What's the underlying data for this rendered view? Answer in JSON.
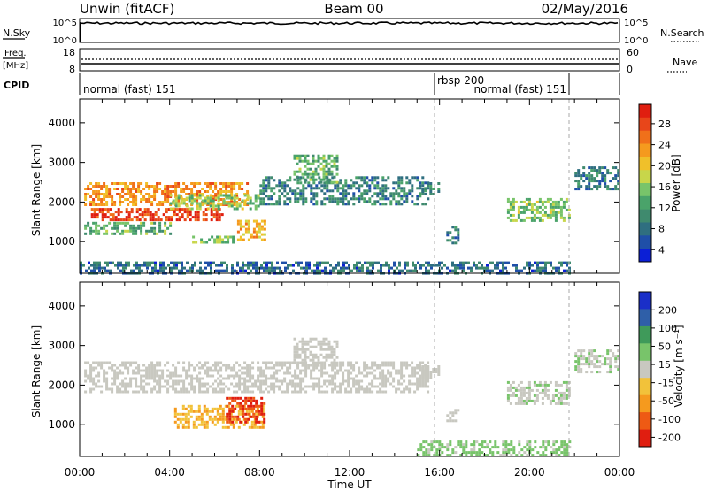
{
  "header": {
    "station": "Unwin (fitACF)",
    "beam": "Beam 00",
    "date": "02/May/2016"
  },
  "strips": {
    "nsky_label": "N.Sky",
    "nsky_ticks": [
      "10^5",
      "10^0"
    ],
    "nsearch_label": "N.Search",
    "freq_label_1": "Freq.",
    "freq_label_2": "[MHz]",
    "freq_ticks": [
      "18",
      "8"
    ],
    "nave_label": "Nave",
    "nave_ticks": [
      "60",
      "0"
    ],
    "cpid_label": "CPID",
    "cpid_segments": [
      {
        "text": "normal (fast) 151",
        "start_h": 0
      },
      {
        "text": "rbsp 200",
        "start_h": 16
      },
      {
        "text": "normal (fast) 151",
        "start_h": 22
      }
    ]
  },
  "chart_data": [
    {
      "type": "heatmap",
      "title": "Power",
      "ylabel": "Slant Range [km]",
      "xlabel": "Time UT",
      "x_ticks": [
        "00:00",
        "04:00",
        "08:00",
        "12:00",
        "16:00",
        "20:00",
        "00:00"
      ],
      "xlim_hours": [
        0,
        24
      ],
      "ylim_km": [
        200,
        4600
      ],
      "y_ticks": [
        1000,
        2000,
        3000,
        4000
      ],
      "colorbar": {
        "label": "Power [dB]",
        "ticks": [
          "28",
          "24",
          "20",
          "16",
          "12",
          "8",
          "4"
        ],
        "range": [
          0,
          30
        ],
        "colors": [
          "#0b1fd6",
          "#1f4fa8",
          "#2f6f80",
          "#3f8a6e",
          "#4aa36a",
          "#78c46a",
          "#c8d64a",
          "#f0c02a",
          "#f59a1e",
          "#f0701a",
          "#e8461a",
          "#e01e10"
        ]
      },
      "bands": [
        {
          "from_h": 0.2,
          "to_h": 7.5,
          "range_km": [
            1950,
            2500
          ],
          "level": 22
        },
        {
          "from_h": 0.5,
          "to_h": 6.5,
          "range_km": [
            1550,
            1850
          ],
          "level": 27
        },
        {
          "from_h": 0.2,
          "to_h": 4.0,
          "range_km": [
            1200,
            1500
          ],
          "level": 12
        },
        {
          "from_h": 4.0,
          "to_h": 8.0,
          "range_km": [
            1800,
            2200
          ],
          "level": 14
        },
        {
          "from_h": 8.0,
          "to_h": 15.5,
          "range_km": [
            1950,
            2650
          ],
          "level": 8
        },
        {
          "from_h": 9.5,
          "to_h": 11.5,
          "range_km": [
            2500,
            3200
          ],
          "level": 12
        },
        {
          "from_h": 7.0,
          "to_h": 8.2,
          "range_km": [
            1050,
            1550
          ],
          "level": 20
        },
        {
          "from_h": 5.0,
          "to_h": 6.8,
          "range_km": [
            950,
            1150
          ],
          "level": 14
        },
        {
          "from_h": 15.2,
          "to_h": 16.0,
          "range_km": [
            2200,
            2500
          ],
          "level": 10
        },
        {
          "from_h": 16.3,
          "to_h": 16.8,
          "range_km": [
            950,
            1400
          ],
          "level": 7
        },
        {
          "from_h": 19.0,
          "to_h": 21.8,
          "range_km": [
            1500,
            2100
          ],
          "level": 14
        },
        {
          "from_h": 22.0,
          "to_h": 24.0,
          "range_km": [
            2300,
            2900
          ],
          "level": 7
        },
        {
          "from_h": 0.0,
          "to_h": 21.8,
          "range_km": [
            200,
            500
          ],
          "level": 6
        }
      ]
    },
    {
      "type": "heatmap",
      "title": "Velocity",
      "ylabel": "Slant Range [km]",
      "xlabel": "Time UT",
      "x_ticks": [
        "00:00",
        "04:00",
        "08:00",
        "12:00",
        "16:00",
        "20:00",
        "00:00"
      ],
      "xlim_hours": [
        0,
        24
      ],
      "ylim_km": [
        200,
        4600
      ],
      "y_ticks": [
        1000,
        2000,
        3000,
        4000
      ],
      "colorbar": {
        "label": "Velocity [m s⁻¹]",
        "ticks": [
          "200",
          "100",
          "50",
          "15",
          "-15",
          "-50",
          "-100",
          "-200"
        ],
        "range": [
          -250,
          250
        ],
        "colors": [
          "#e01e10",
          "#ee5a14",
          "#f59a1e",
          "#f2c23a",
          "#c8c8c0",
          "#78c46a",
          "#3f9a5a",
          "#2f5fa8",
          "#1a2fc8"
        ]
      },
      "bands": [
        {
          "from_h": 0.2,
          "to_h": 15.5,
          "range_km": [
            1800,
            2600
          ],
          "level": 0
        },
        {
          "from_h": 9.5,
          "to_h": 11.5,
          "range_km": [
            2500,
            3200
          ],
          "level": 0
        },
        {
          "from_h": 4.2,
          "to_h": 8.2,
          "range_km": [
            900,
            1500
          ],
          "level": -80
        },
        {
          "from_h": 6.5,
          "to_h": 8.2,
          "range_km": [
            1050,
            1700
          ],
          "level": -200
        },
        {
          "from_h": 15.2,
          "to_h": 16.0,
          "range_km": [
            2200,
            2500
          ],
          "level": 0
        },
        {
          "from_h": 16.3,
          "to_h": 16.8,
          "range_km": [
            1100,
            1400
          ],
          "level": 0
        },
        {
          "from_h": 19.0,
          "to_h": 21.8,
          "range_km": [
            1500,
            2100
          ],
          "level": 20
        },
        {
          "from_h": 22.0,
          "to_h": 24.0,
          "range_km": [
            2300,
            2900
          ],
          "level": 20
        },
        {
          "from_h": 15.0,
          "to_h": 21.8,
          "range_km": [
            250,
            600
          ],
          "level": 40
        }
      ]
    }
  ]
}
